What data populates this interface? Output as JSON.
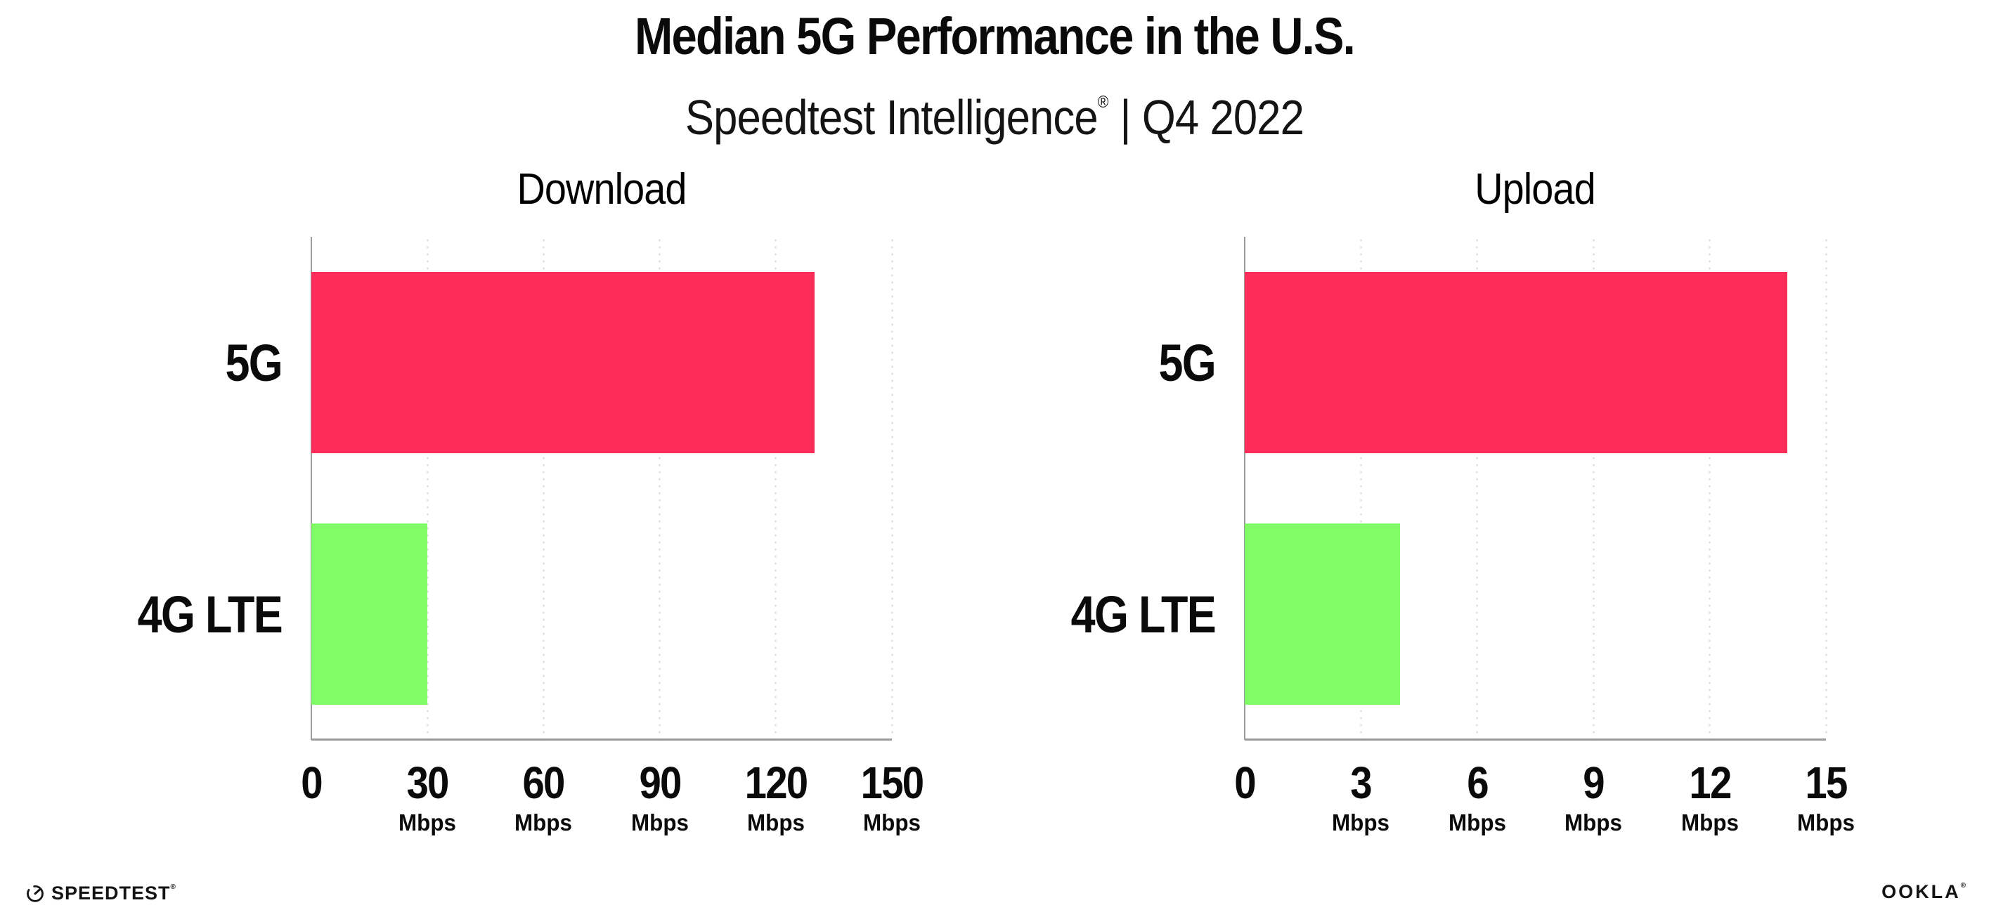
{
  "header": {
    "title": "Median 5G Performance in the U.S.",
    "subtitle_brand": "Speedtest Intelligence",
    "subtitle_reg": "®",
    "subtitle_rest": " | Q4 2022"
  },
  "chart_data": [
    {
      "type": "bar",
      "orientation": "horizontal",
      "title": "Download",
      "categories": [
        "5G",
        "4G LTE"
      ],
      "values": [
        130,
        30
      ],
      "unit": "Mbps",
      "ticks": [
        0,
        30,
        60,
        90,
        120,
        150
      ],
      "tick_unit": "Mbps",
      "xlim": [
        0,
        150
      ],
      "grid": "dotted-vertical",
      "legend": "none",
      "bar_colors": [
        "#fd2d59",
        "#80fc66"
      ]
    },
    {
      "type": "bar",
      "orientation": "horizontal",
      "title": "Upload",
      "categories": [
        "5G",
        "4G LTE"
      ],
      "values": [
        14,
        4
      ],
      "unit": "Mbps",
      "ticks": [
        0,
        3,
        6,
        9,
        12,
        15
      ],
      "tick_unit": "Mbps",
      "xlim": [
        0,
        15
      ],
      "grid": "dotted-vertical",
      "legend": "none",
      "bar_colors": [
        "#fd2d59",
        "#80fc66"
      ]
    }
  ],
  "colors": {
    "bar_5g": "#fd2d59",
    "bar_4g_lte": "#80fc66",
    "axis": "#9b9b9b",
    "gridline": "#dfdfeb",
    "text": "#0a0a0a",
    "background": "#ffffff"
  },
  "footer": {
    "speedtest_label": "SPEEDTEST",
    "speedtest_reg": "®",
    "ookla_label": "OOKLA",
    "ookla_reg": "®"
  }
}
